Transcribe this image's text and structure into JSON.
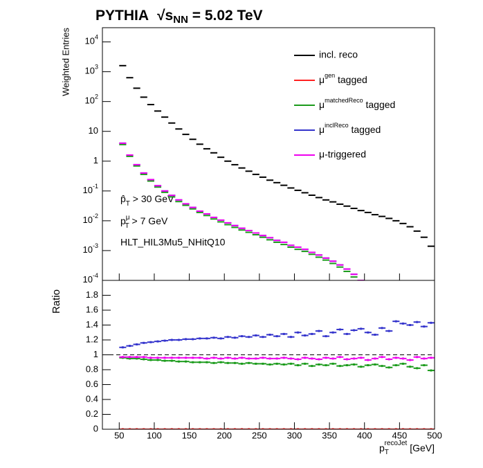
{
  "chart_data": [
    {
      "type": "step",
      "title": [
        "PYTHIA",
        "√s",
        "NN",
        " = 5.02 TeV"
      ],
      "ylabel": "Weighted Entries",
      "annotations": [
        [
          "p̂",
          "T",
          " > 30 GeV"
        ],
        [
          "p",
          "μ",
          "T",
          " > 7 GeV"
        ],
        "HLT_HIL3Mu5_NHitQ10"
      ],
      "log_y": true,
      "xlim": [
        26,
        500
      ],
      "ylim": [
        0.0001,
        30000
      ],
      "yticks": [
        {
          "value": 0.0001,
          "label": [
            "10",
            "-4"
          ]
        },
        {
          "value": 0.001,
          "label": [
            "10",
            "-3"
          ]
        },
        {
          "value": 0.01,
          "label": [
            "10",
            "-2"
          ]
        },
        {
          "value": 0.1,
          "label": [
            "10",
            "-1"
          ]
        },
        1,
        10,
        {
          "value": 100,
          "label": [
            "10",
            "2"
          ]
        },
        {
          "value": 1000,
          "label": [
            "10",
            "3"
          ]
        },
        {
          "value": 10000,
          "label": [
            "10",
            "4"
          ]
        }
      ],
      "x": [
        55,
        65,
        75,
        85,
        95,
        105,
        115,
        125,
        135,
        145,
        155,
        165,
        175,
        185,
        195,
        205,
        215,
        225,
        235,
        245,
        255,
        265,
        275,
        285,
        295,
        305,
        315,
        325,
        335,
        345,
        355,
        365,
        375,
        385,
        395,
        405,
        415,
        425,
        435,
        445,
        455,
        465,
        475,
        485,
        495
      ],
      "legend": "upper right",
      "series": [
        {
          "name": "incl. reco",
          "color": "#000000",
          "values": [
            1600,
            630,
            280,
            140,
            79,
            48,
            30,
            19,
            12,
            7.9,
            5.4,
            3.7,
            2.6,
            1.9,
            1.35,
            1.0,
            0.76,
            0.59,
            0.46,
            0.36,
            0.29,
            0.23,
            0.19,
            0.155,
            0.126,
            0.105,
            0.087,
            0.072,
            0.06,
            0.05,
            0.043,
            0.036,
            0.031,
            0.026,
            0.022,
            0.019,
            0.016,
            0.014,
            0.012,
            0.01,
            0.0081,
            0.0063,
            0.0045,
            0.0028,
            0.0014
          ]
        },
        {
          "name": [
            "μ",
            "gen",
            " tagged"
          ],
          "color": "#ff2020",
          "values": [
            0,
            0,
            0,
            0,
            0,
            0,
            0,
            0,
            0,
            0,
            0,
            0,
            0,
            0,
            0,
            0,
            0,
            0,
            0,
            0,
            0,
            0,
            0,
            0,
            0,
            0,
            0,
            0,
            0,
            0,
            0,
            0,
            0,
            0,
            0,
            0,
            0,
            0,
            0,
            0,
            0,
            0,
            0,
            0,
            0
          ]
        },
        {
          "name": [
            "μ",
            "matchedReco",
            " tagged"
          ],
          "color": "#1a9a1a",
          "values": [
            3.6,
            1.45,
            0.69,
            0.36,
            0.215,
            0.135,
            0.09,
            0.063,
            0.044,
            0.033,
            0.025,
            0.019,
            0.015,
            0.0115,
            0.0092,
            0.0074,
            0.006,
            0.0049,
            0.0041,
            0.0034,
            0.0028,
            0.0023,
            0.0019,
            0.0016,
            0.0013,
            0.0011,
            0.00094,
            0.00075,
            0.0006,
            0.00048,
            0.00037,
            0.00028,
            0.0002,
            0.00013,
            null,
            null,
            null,
            null,
            null,
            null,
            null,
            null,
            null,
            null,
            null
          ]
        },
        {
          "name": [
            "μ",
            "inclReco",
            " tagged"
          ],
          "color": "#3333cc",
          "values": [
            4.0,
            1.6,
            0.76,
            0.4,
            0.24,
            0.15,
            0.1,
            0.071,
            0.05,
            0.037,
            0.028,
            0.021,
            0.017,
            0.013,
            0.0105,
            0.0085,
            0.0069,
            0.0056,
            0.0047,
            0.0039,
            0.0032,
            0.0027,
            0.0022,
            0.0019,
            0.0015,
            0.0013,
            0.0011,
            0.00087,
            0.00071,
            0.00056,
            0.00044,
            0.00033,
            0.00024,
            0.00016,
            0.0001,
            6e-05,
            null,
            null,
            null,
            null,
            null,
            null,
            null,
            null,
            null
          ]
        },
        {
          "name": "μ-triggered",
          "color": "#ee00ee",
          "values": [
            4.0,
            1.6,
            0.76,
            0.4,
            0.24,
            0.15,
            0.1,
            0.071,
            0.05,
            0.037,
            0.028,
            0.021,
            0.017,
            0.013,
            0.0105,
            0.0085,
            0.0069,
            0.0056,
            0.0047,
            0.0039,
            0.0032,
            0.0027,
            0.0022,
            0.0019,
            0.0015,
            0.0013,
            0.0011,
            0.00087,
            0.00071,
            0.00056,
            0.00044,
            0.00033,
            0.00024,
            0.00016,
            0.0001,
            6e-05,
            null,
            null,
            null,
            null,
            null,
            null,
            null,
            null,
            null
          ]
        }
      ]
    },
    {
      "type": "scatter",
      "ylabel": "Ratio",
      "xlabel": [
        "p",
        "T",
        "recoJet",
        " [GeV]"
      ],
      "xlim": [
        26,
        500
      ],
      "xticks": [
        50,
        100,
        150,
        200,
        250,
        300,
        350,
        400,
        450,
        500
      ],
      "ylim": [
        0,
        2
      ],
      "yticks": [
        0,
        0.2,
        0.4,
        0.6,
        0.8,
        1,
        1.2,
        1.4,
        1.6,
        1.8
      ],
      "ref_line": 1,
      "x": [
        55,
        65,
        75,
        85,
        95,
        105,
        115,
        125,
        135,
        145,
        155,
        165,
        175,
        185,
        195,
        205,
        215,
        225,
        235,
        245,
        255,
        265,
        275,
        285,
        295,
        305,
        315,
        325,
        335,
        345,
        355,
        365,
        375,
        385,
        395,
        405,
        415,
        425,
        435,
        445,
        455,
        465,
        475,
        485,
        495
      ],
      "series": [
        {
          "color": "#ff2020",
          "values": [
            0,
            0,
            0,
            0,
            0,
            0,
            0,
            0,
            0,
            0,
            0,
            0,
            0,
            0,
            0,
            0,
            0,
            0,
            0,
            0,
            0,
            0,
            0,
            0,
            0,
            0,
            0,
            0,
            0,
            0,
            0,
            0,
            0,
            0,
            0,
            0,
            0,
            0,
            0,
            0,
            0,
            0,
            0,
            0,
            0
          ]
        },
        {
          "color": "#1a9a1a",
          "values": [
            0.96,
            0.95,
            0.95,
            0.94,
            0.93,
            0.93,
            0.92,
            0.92,
            0.91,
            0.91,
            0.9,
            0.9,
            0.9,
            0.89,
            0.9,
            0.89,
            0.89,
            0.88,
            0.89,
            0.88,
            0.88,
            0.87,
            0.88,
            0.87,
            0.88,
            0.86,
            0.88,
            0.85,
            0.87,
            0.86,
            0.88,
            0.85,
            0.86,
            0.87,
            0.84,
            0.86,
            0.87,
            0.85,
            0.83,
            0.86,
            0.88,
            0.84,
            0.82,
            0.86,
            0.79
          ]
        },
        {
          "color": "#3333cc",
          "values": [
            1.1,
            1.12,
            1.14,
            1.16,
            1.17,
            1.18,
            1.19,
            1.2,
            1.2,
            1.21,
            1.21,
            1.22,
            1.22,
            1.23,
            1.22,
            1.24,
            1.23,
            1.25,
            1.24,
            1.26,
            1.24,
            1.27,
            1.25,
            1.28,
            1.24,
            1.3,
            1.26,
            1.28,
            1.32,
            1.25,
            1.3,
            1.34,
            1.28,
            1.33,
            1.35,
            1.3,
            1.27,
            1.36,
            1.32,
            1.45,
            1.42,
            1.4,
            1.44,
            1.38,
            1.43
          ]
        },
        {
          "color": "#ee00ee",
          "values": [
            0.97,
            0.97,
            0.97,
            0.97,
            0.96,
            0.96,
            0.96,
            0.96,
            0.96,
            0.96,
            0.96,
            0.96,
            0.95,
            0.96,
            0.95,
            0.96,
            0.95,
            0.96,
            0.95,
            0.95,
            0.96,
            0.95,
            0.95,
            0.96,
            0.95,
            0.94,
            0.96,
            0.95,
            0.94,
            0.96,
            0.95,
            0.97,
            0.94,
            0.95,
            0.96,
            0.93,
            0.95,
            0.97,
            0.94,
            0.96,
            0.95,
            0.93,
            0.97,
            0.95,
            0.96
          ]
        }
      ]
    }
  ]
}
